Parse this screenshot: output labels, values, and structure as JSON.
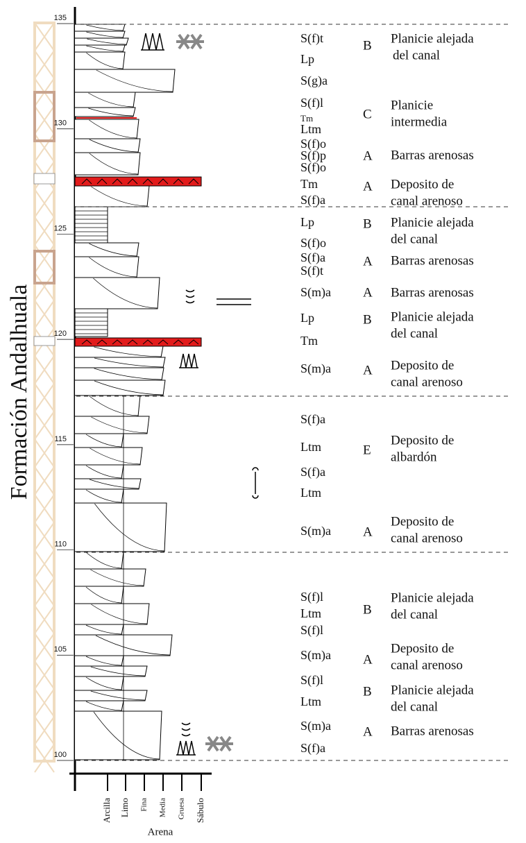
{
  "formation_label": "Formación Andalhuala",
  "depth_ticks": [
    135,
    130,
    125,
    120,
    115,
    110,
    105,
    100
  ],
  "lithofacies": [
    "S(f)t",
    "Lp",
    "S(g)a",
    "S(f)l",
    "Tm",
    "Ltm",
    "S(f)o",
    "S(f)p",
    "S(f)o",
    "Tm",
    "S(f)a",
    "Lp",
    "S(f)o",
    "S(f)a",
    "S(f)t",
    "S(m)a",
    "Lp",
    "Tm",
    "S(m)a",
    "S(f)a",
    "Ltm",
    "S(f)a",
    "Ltm",
    "S(m)a",
    "S(f)l",
    "Ltm",
    "S(f)l",
    "S(m)a",
    "S(f)l",
    "Ltm",
    "S(m)a",
    "S(f)a"
  ],
  "facies": [
    "B",
    "C",
    "A",
    "A",
    "B",
    "A",
    "A",
    "B",
    "A",
    "E",
    "A",
    "B",
    "A",
    "B",
    "A"
  ],
  "interpretations": [
    [
      "Planicie alejada",
      "del canal"
    ],
    [
      "Planicie",
      "intermedia"
    ],
    [
      "Barras arenosas"
    ],
    [
      "Deposito de",
      "canal arenoso"
    ],
    [
      "Planicie alejada",
      "del canal"
    ],
    [
      "Barras arenosas"
    ],
    [
      "Barras arenosas"
    ],
    [
      "Planicie alejada",
      "del canal"
    ],
    [
      "Deposito de",
      "canal arenoso"
    ],
    [
      "Deposito de",
      "albardón"
    ],
    [
      "Deposito de",
      "canal arenoso"
    ],
    [
      "Planicie alejada",
      "del canal"
    ],
    [
      "Deposito de",
      "canal arenoso"
    ],
    [
      "Planicie alejada",
      "del canal"
    ],
    [
      "Barras arenosas"
    ]
  ],
  "grain_size_scale": [
    "Arcilla",
    "Limo",
    "Fina",
    "Media",
    "Gruesa",
    "Sábulo"
  ],
  "grain_size_group": "Arena"
}
